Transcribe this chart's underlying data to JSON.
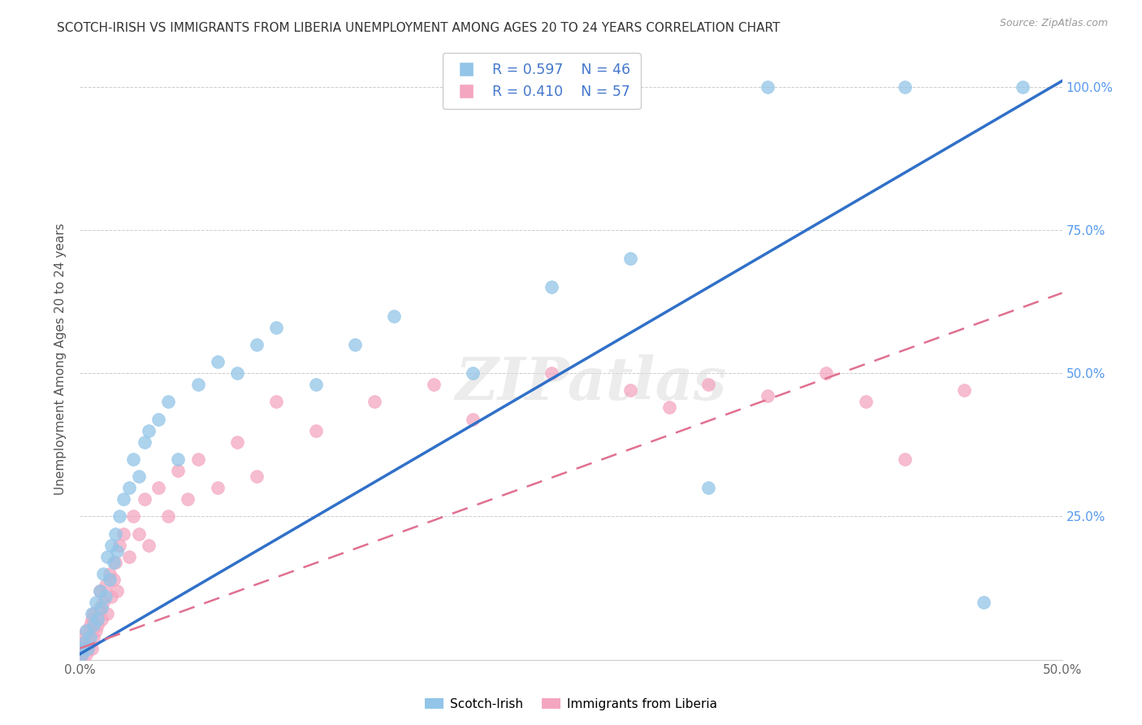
{
  "title": "SCOTCH-IRISH VS IMMIGRANTS FROM LIBERIA UNEMPLOYMENT AMONG AGES 20 TO 24 YEARS CORRELATION CHART",
  "source": "Source: ZipAtlas.com",
  "ylabel": "Unemployment Among Ages 20 to 24 years",
  "xmin": 0.0,
  "xmax": 0.5,
  "ymin": 0.0,
  "ymax": 1.05,
  "xticks": [
    0.0,
    0.1,
    0.2,
    0.3,
    0.4,
    0.5
  ],
  "xticklabels": [
    "0.0%",
    "",
    "",
    "",
    "",
    "50.0%"
  ],
  "yticks": [
    0.0,
    0.25,
    0.5,
    0.75,
    1.0
  ],
  "yticklabels": [
    "",
    "25.0%",
    "50.0%",
    "75.0%",
    "100.0%"
  ],
  "legend_blue_r": "R = 0.597",
  "legend_blue_n": "N = 46",
  "legend_pink_r": "R = 0.410",
  "legend_pink_n": "N = 57",
  "blue_label": "Scotch-Irish",
  "pink_label": "Immigrants from Liberia",
  "blue_color": "#92C5E8",
  "pink_color": "#F4A6C0",
  "blue_line_color": "#3070C8",
  "pink_line_color": "#E07090",
  "watermark": "ZIPatlas",
  "blue_line_x0": 0.0,
  "blue_line_y0": 0.01,
  "blue_line_x1": 0.5,
  "blue_line_y1": 1.01,
  "pink_line_x0": 0.0,
  "pink_line_y0": 0.02,
  "pink_line_x1": 0.5,
  "pink_line_y1": 0.64,
  "blue_scatter_x": [
    0.0,
    0.001,
    0.002,
    0.003,
    0.004,
    0.005,
    0.006,
    0.007,
    0.008,
    0.009,
    0.01,
    0.011,
    0.012,
    0.013,
    0.014,
    0.015,
    0.016,
    0.017,
    0.018,
    0.019,
    0.02,
    0.022,
    0.025,
    0.027,
    0.03,
    0.033,
    0.035,
    0.04,
    0.045,
    0.05,
    0.06,
    0.07,
    0.08,
    0.09,
    0.1,
    0.12,
    0.14,
    0.16,
    0.2,
    0.24,
    0.28,
    0.32,
    0.35,
    0.42,
    0.46,
    0.48
  ],
  "blue_scatter_y": [
    0.02,
    0.01,
    0.03,
    0.05,
    0.02,
    0.04,
    0.08,
    0.06,
    0.1,
    0.07,
    0.12,
    0.09,
    0.15,
    0.11,
    0.18,
    0.14,
    0.2,
    0.17,
    0.22,
    0.19,
    0.25,
    0.28,
    0.3,
    0.35,
    0.32,
    0.38,
    0.4,
    0.42,
    0.45,
    0.35,
    0.48,
    0.52,
    0.5,
    0.55,
    0.58,
    0.48,
    0.55,
    0.6,
    0.5,
    0.65,
    0.7,
    0.3,
    1.0,
    1.0,
    0.1,
    1.0
  ],
  "pink_scatter_x": [
    0.0,
    0.0,
    0.001,
    0.001,
    0.002,
    0.002,
    0.003,
    0.003,
    0.004,
    0.005,
    0.005,
    0.006,
    0.006,
    0.007,
    0.007,
    0.008,
    0.009,
    0.01,
    0.01,
    0.011,
    0.012,
    0.013,
    0.014,
    0.015,
    0.016,
    0.017,
    0.018,
    0.019,
    0.02,
    0.022,
    0.025,
    0.027,
    0.03,
    0.033,
    0.035,
    0.04,
    0.045,
    0.05,
    0.055,
    0.06,
    0.07,
    0.08,
    0.09,
    0.1,
    0.12,
    0.15,
    0.18,
    0.2,
    0.24,
    0.28,
    0.3,
    0.32,
    0.35,
    0.38,
    0.4,
    0.42,
    0.45
  ],
  "pink_scatter_y": [
    0.0,
    0.01,
    0.01,
    0.03,
    0.02,
    0.04,
    0.01,
    0.05,
    0.02,
    0.03,
    0.06,
    0.02,
    0.07,
    0.04,
    0.08,
    0.05,
    0.06,
    0.09,
    0.12,
    0.07,
    0.1,
    0.13,
    0.08,
    0.15,
    0.11,
    0.14,
    0.17,
    0.12,
    0.2,
    0.22,
    0.18,
    0.25,
    0.22,
    0.28,
    0.2,
    0.3,
    0.25,
    0.33,
    0.28,
    0.35,
    0.3,
    0.38,
    0.32,
    0.45,
    0.4,
    0.45,
    0.48,
    0.42,
    0.5,
    0.47,
    0.44,
    0.48,
    0.46,
    0.5,
    0.45,
    0.35,
    0.47
  ]
}
